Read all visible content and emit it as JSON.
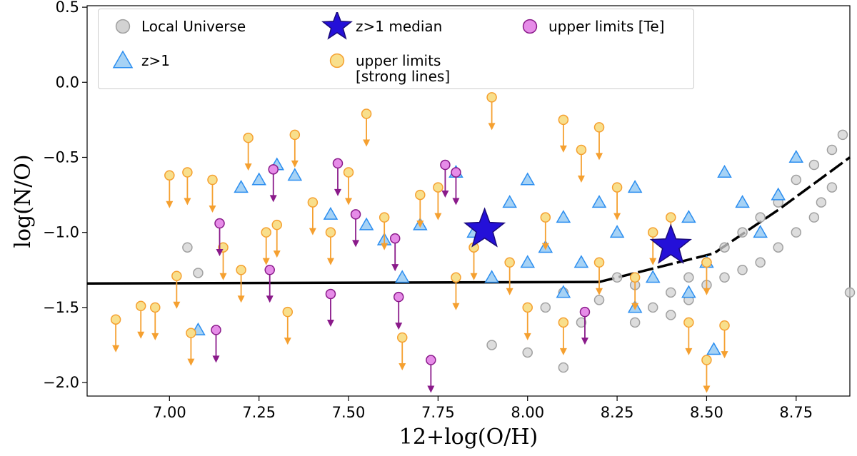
{
  "chart_data": {
    "type": "scatter",
    "xlabel": "12+log(O/H)",
    "ylabel": "log(N/O)",
    "xlim": [
      6.77,
      8.9
    ],
    "ylim": [
      -2.09,
      0.51
    ],
    "xticks": [
      {
        "value": 7.0,
        "label": "7.00"
      },
      {
        "value": 7.25,
        "label": "7.25"
      },
      {
        "value": 7.5,
        "label": "7.50"
      },
      {
        "value": 7.75,
        "label": "7.75"
      },
      {
        "value": 8.0,
        "label": "8.00"
      },
      {
        "value": 8.25,
        "label": "8.25"
      },
      {
        "value": 8.5,
        "label": "8.50"
      },
      {
        "value": 8.75,
        "label": "8.75"
      }
    ],
    "yticks": [
      0.5,
      {
        "value": 0.0,
        "label": "0.0"
      },
      {
        "value": -0.5,
        "label": "−0.5"
      },
      {
        "value": -1.0,
        "label": "−1.0"
      },
      {
        "value": -1.5,
        "label": "−1.5"
      },
      {
        "value": -2.0,
        "label": "−2.0"
      }
    ],
    "series": [
      {
        "name": "Local Universe",
        "marker": "o",
        "color": "#d2d2d2",
        "edgecolor": "#a0a0a0",
        "upper_limit": false,
        "x": [
          8.05,
          8.1,
          8.15,
          8.2,
          8.25,
          8.3,
          8.35,
          8.4,
          8.45,
          8.5,
          8.55,
          8.6,
          8.65,
          8.7,
          8.75,
          8.8,
          8.85,
          8.88,
          8.6,
          8.7,
          8.8,
          8.85,
          8.5,
          8.45,
          7.9,
          7.05,
          7.08,
          8.55,
          8.65,
          8.75,
          8.82,
          8.9,
          8.0,
          8.1,
          8.3,
          8.4
        ],
        "values": [
          -1.5,
          -1.4,
          -1.6,
          -1.45,
          -1.3,
          -1.35,
          -1.5,
          -1.4,
          -1.3,
          -1.2,
          -1.1,
          -1.0,
          -0.9,
          -0.8,
          -0.65,
          -0.55,
          -0.45,
          -0.35,
          -1.25,
          -1.1,
          -0.9,
          -0.7,
          -1.35,
          -1.45,
          -1.75,
          -1.1,
          -1.27,
          -1.3,
          -1.2,
          -1.0,
          -0.8,
          -1.4,
          -1.8,
          -1.9,
          -1.6,
          -1.55
        ]
      },
      {
        "name": "z>1",
        "marker": "^",
        "color": "#a6d2f5",
        "edgecolor": "#2b8ef0",
        "upper_limit": false,
        "x": [
          7.08,
          7.2,
          7.25,
          7.3,
          7.35,
          7.45,
          7.55,
          7.6,
          7.65,
          7.7,
          7.8,
          7.85,
          7.95,
          8.0,
          8.05,
          8.1,
          8.15,
          8.2,
          8.25,
          8.3,
          8.35,
          8.4,
          8.45,
          8.5,
          8.55,
          8.6,
          8.65,
          8.7,
          8.75,
          8.52,
          8.45,
          8.3,
          8.1,
          7.9,
          8.0
        ],
        "values": [
          -1.65,
          -0.7,
          -0.65,
          -0.55,
          -0.62,
          -0.88,
          -0.95,
          -1.05,
          -1.3,
          -0.95,
          -0.6,
          -1.0,
          -0.8,
          -0.65,
          -1.1,
          -0.9,
          -1.2,
          -0.8,
          -1.0,
          -0.7,
          -1.3,
          -1.1,
          -0.9,
          -1.2,
          -0.6,
          -0.8,
          -1.0,
          -0.75,
          -0.5,
          -1.78,
          -1.4,
          -1.5,
          -1.4,
          -1.3,
          -1.2
        ]
      },
      {
        "name": "z>1 median",
        "marker": "*",
        "color": "#2410d8",
        "edgecolor": "#1a0a7a",
        "upper_limit": false,
        "x": [
          7.88,
          8.4
        ],
        "values": [
          -0.98,
          -1.09
        ]
      },
      {
        "name": "upper limits [strong lines]",
        "marker": "o",
        "color": "#f8df8c",
        "edgecolor": "#f5a030",
        "upper_limit": true,
        "x": [
          6.85,
          6.92,
          6.96,
          7.0,
          7.02,
          7.05,
          7.06,
          7.12,
          7.15,
          7.2,
          7.22,
          7.27,
          7.3,
          7.33,
          7.35,
          7.4,
          7.45,
          7.5,
          7.55,
          7.6,
          7.65,
          7.7,
          7.75,
          7.8,
          7.85,
          7.9,
          7.95,
          8.0,
          8.05,
          8.1,
          8.15,
          8.2,
          8.25,
          8.3,
          8.35,
          8.4,
          8.45,
          8.5,
          8.55,
          8.2,
          8.1,
          8.5
        ],
        "values": [
          -1.58,
          -1.49,
          -1.5,
          -0.62,
          -1.29,
          -0.6,
          -1.67,
          -0.65,
          -1.1,
          -1.25,
          -0.37,
          -1.0,
          -0.95,
          -1.53,
          -0.35,
          -0.8,
          -1.0,
          -0.6,
          -0.21,
          -0.9,
          -1.7,
          -0.75,
          -0.7,
          -1.3,
          -1.1,
          -0.1,
          -1.2,
          -1.5,
          -0.9,
          -1.6,
          -0.45,
          -1.2,
          -0.7,
          -1.3,
          -1.0,
          -0.9,
          -1.6,
          -1.2,
          -1.62,
          -0.3,
          -0.25,
          -1.85
        ]
      },
      {
        "name": "upper limits [Te]",
        "marker": "o",
        "color": "#e68ce8",
        "edgecolor": "#8a1a8a",
        "upper_limit": true,
        "x": [
          7.13,
          7.14,
          7.28,
          7.29,
          7.45,
          7.47,
          7.52,
          7.63,
          7.64,
          7.73,
          7.77,
          7.8,
          8.16
        ],
        "values": [
          -1.65,
          -0.94,
          -1.25,
          -0.58,
          -1.41,
          -0.54,
          -0.88,
          -1.04,
          -1.43,
          -1.85,
          -0.55,
          -0.6,
          -1.53
        ]
      }
    ],
    "lines": [
      {
        "style": "solid",
        "color": "#000000",
        "x": [
          6.77,
          8.2
        ],
        "values": [
          -1.34,
          -1.33
        ]
      },
      {
        "style": "dashed",
        "color": "#000000",
        "x": [
          8.2,
          8.52,
          8.7,
          8.9
        ],
        "values": [
          -1.33,
          -1.14,
          -0.85,
          -0.5
        ]
      }
    ]
  }
}
